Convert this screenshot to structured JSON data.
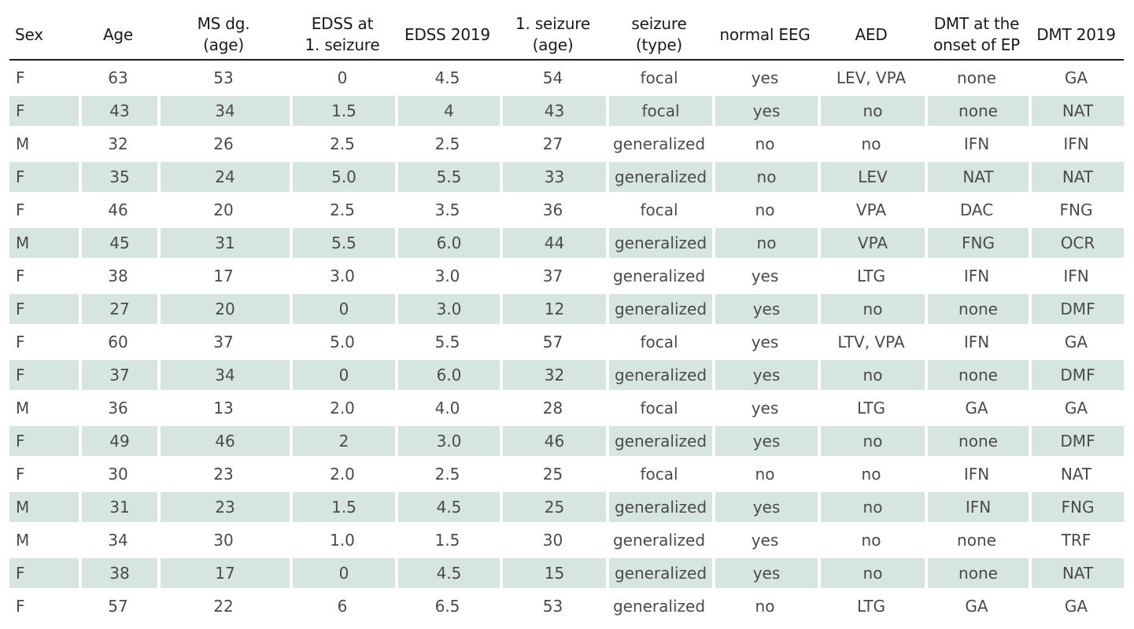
{
  "columns": [
    "Sex",
    "Age",
    "MS dg.\n(age)",
    "EDSS at\n1. seizure",
    "EDSS 2019",
    "1. seizure\n(age)",
    "seizure\n(type)",
    "normal EEG",
    "AED",
    "DMT at the\nonset of EP",
    "DMT 2019"
  ],
  "rows": [
    [
      "F",
      "63",
      "53",
      "0",
      "4.5",
      "54",
      "focal",
      "yes",
      "LEV, VPA",
      "none",
      "GA"
    ],
    [
      "F",
      "43",
      "34",
      "1.5",
      "4",
      "43",
      "focal",
      "yes",
      "no",
      "none",
      "NAT"
    ],
    [
      "M",
      "32",
      "26",
      "2.5",
      "2.5",
      "27",
      "generalized",
      "no",
      "no",
      "IFN",
      "IFN"
    ],
    [
      "F",
      "35",
      "24",
      "5.0",
      "5.5",
      "33",
      "generalized",
      "no",
      "LEV",
      "NAT",
      "NAT"
    ],
    [
      "F",
      "46",
      "20",
      "2.5",
      "3.5",
      "36",
      "focal",
      "no",
      "VPA",
      "DAC",
      "FNG"
    ],
    [
      "M",
      "45",
      "31",
      "5.5",
      "6.0",
      "44",
      "generalized",
      "no",
      "VPA",
      "FNG",
      "OCR"
    ],
    [
      "F",
      "38",
      "17",
      "3.0",
      "3.0",
      "37",
      "generalized",
      "yes",
      "LTG",
      "IFN",
      "IFN"
    ],
    [
      "F",
      "27",
      "20",
      "0",
      "3.0",
      "12",
      "generalized",
      "yes",
      "no",
      "none",
      "DMF"
    ],
    [
      "F",
      "60",
      "37",
      "5.0",
      "5.5",
      "57",
      "focal",
      "yes",
      "LTV, VPA",
      "IFN",
      "GA"
    ],
    [
      "F",
      "37",
      "34",
      "0",
      "6.0",
      "32",
      "generalized",
      "yes",
      "no",
      "none",
      "DMF"
    ],
    [
      "M",
      "36",
      "13",
      "2.0",
      "4.0",
      "28",
      "focal",
      "yes",
      "LTG",
      "GA",
      "GA"
    ],
    [
      "F",
      "49",
      "46",
      "2",
      "3.0",
      "46",
      "generalized",
      "yes",
      "no",
      "none",
      "DMF"
    ],
    [
      "F",
      "30",
      "23",
      "2.0",
      "2.5",
      "25",
      "focal",
      "no",
      "no",
      "IFN",
      "NAT"
    ],
    [
      "M",
      "31",
      "23",
      "1.5",
      "4.5",
      "25",
      "generalized",
      "yes",
      "no",
      "IFN",
      "FNG"
    ],
    [
      "M",
      "34",
      "30",
      "1.0",
      "1.5",
      "30",
      "generalized",
      "yes",
      "no",
      "none",
      "TRF"
    ],
    [
      "F",
      "38",
      "17",
      "0",
      "4.5",
      "15",
      "generalized",
      "yes",
      "no",
      "none",
      "NAT"
    ],
    [
      "F",
      "57",
      "22",
      "6",
      "6.5",
      "53",
      "generalized",
      "no",
      "LTG",
      "GA",
      "GA"
    ]
  ],
  "colors": {
    "stripe": "#d7e5e0",
    "text": "#4a4a4a",
    "rule": "#231f20"
  }
}
